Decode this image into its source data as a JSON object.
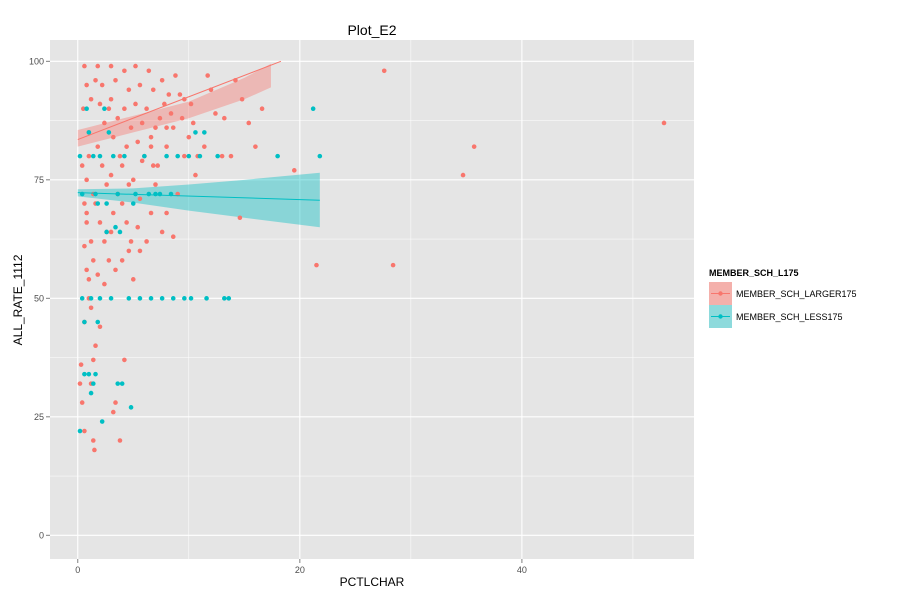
{
  "chart_data": {
    "type": "scatter",
    "title": "Plot_E2",
    "xlabel": "PCTLCHAR",
    "ylabel": "ALL_RATE_1112",
    "xlim": [
      -2.5,
      55.5
    ],
    "ylim": [
      -5,
      104.5
    ],
    "x_ticks": [
      0,
      20,
      40
    ],
    "y_ticks": [
      0,
      25,
      50,
      75,
      100
    ],
    "grid": true,
    "legend": {
      "title": "MEMBER_SCH_L175",
      "position": "right",
      "entries": [
        {
          "label": "MEMBER_SCH_LARGER175",
          "color": "#F8766D",
          "band_color": "#F4B0AB"
        },
        {
          "label": "MEMBER_SCH_LESS175",
          "color": "#00BFC4",
          "band_color": "#8DDADC"
        }
      ]
    },
    "series": [
      {
        "name": "MEMBER_SCH_LARGER175",
        "color": "#F8766D",
        "points": [
          [
            27.6,
            98
          ],
          [
            52.8,
            87
          ],
          [
            35.7,
            82
          ],
          [
            34.7,
            76
          ],
          [
            28.4,
            57
          ],
          [
            21.5,
            57
          ],
          [
            19.5,
            77
          ],
          [
            16.6,
            90
          ],
          [
            16.0,
            82
          ],
          [
            15.4,
            87
          ],
          [
            14.8,
            92
          ],
          [
            14.6,
            67
          ],
          [
            14.2,
            96
          ],
          [
            13.8,
            80
          ],
          [
            13.2,
            88
          ],
          [
            12.0,
            94
          ],
          [
            11.4,
            82
          ],
          [
            10.6,
            76
          ],
          [
            11.7,
            97
          ],
          [
            12.4,
            89
          ],
          [
            13.0,
            80
          ],
          [
            10.0,
            84
          ],
          [
            10.8,
            80
          ],
          [
            9.6,
            80
          ],
          [
            9.0,
            72
          ],
          [
            9.6,
            92
          ],
          [
            8.0,
            86
          ],
          [
            7.6,
            64
          ],
          [
            8.6,
            63
          ],
          [
            8.0,
            68
          ],
          [
            7.0,
            74
          ],
          [
            6.6,
            68
          ],
          [
            6.6,
            84
          ],
          [
            6.0,
            80
          ],
          [
            6.8,
            78
          ],
          [
            6.2,
            62
          ],
          [
            5.4,
            65
          ],
          [
            5.6,
            60
          ],
          [
            5.0,
            54
          ],
          [
            4.6,
            60
          ],
          [
            3.4,
            28
          ],
          [
            3.2,
            26
          ],
          [
            3.8,
            20
          ],
          [
            4.2,
            37
          ],
          [
            2.0,
            44
          ],
          [
            1.6,
            40
          ],
          [
            1.4,
            37
          ],
          [
            1.2,
            32
          ],
          [
            1.4,
            20
          ],
          [
            1.5,
            18
          ],
          [
            0.6,
            22
          ],
          [
            0.4,
            28
          ],
          [
            0.2,
            32
          ],
          [
            0.3,
            36
          ],
          [
            0.6,
            45
          ],
          [
            1.0,
            50
          ],
          [
            1.2,
            48
          ],
          [
            0.8,
            56
          ],
          [
            0.6,
            61
          ],
          [
            0.8,
            66
          ],
          [
            0.6,
            70
          ],
          [
            0.8,
            75
          ],
          [
            0.4,
            78
          ],
          [
            1.0,
            85
          ],
          [
            0.5,
            90
          ],
          [
            0.8,
            95
          ],
          [
            0.6,
            99
          ],
          [
            1.8,
            99
          ],
          [
            2.2,
            95
          ],
          [
            2.0,
            91
          ],
          [
            2.4,
            87
          ],
          [
            1.8,
            82
          ],
          [
            2.2,
            78
          ],
          [
            2.6,
            74
          ],
          [
            1.6,
            70
          ],
          [
            2.0,
            66
          ],
          [
            2.4,
            62
          ],
          [
            2.8,
            58
          ],
          [
            1.8,
            55
          ],
          [
            2.4,
            53
          ],
          [
            3.0,
            99
          ],
          [
            3.4,
            96
          ],
          [
            3.0,
            92
          ],
          [
            3.6,
            88
          ],
          [
            3.2,
            84
          ],
          [
            3.8,
            80
          ],
          [
            3.0,
            76
          ],
          [
            3.6,
            72
          ],
          [
            3.2,
            68
          ],
          [
            3.0,
            64
          ],
          [
            4.2,
            98
          ],
          [
            4.6,
            94
          ],
          [
            4.2,
            90
          ],
          [
            4.8,
            86
          ],
          [
            4.4,
            82
          ],
          [
            4.0,
            78
          ],
          [
            4.6,
            74
          ],
          [
            4.0,
            70
          ],
          [
            4.4,
            66
          ],
          [
            4.8,
            62
          ],
          [
            5.2,
            99
          ],
          [
            5.6,
            95
          ],
          [
            5.2,
            91
          ],
          [
            5.8,
            87
          ],
          [
            5.4,
            83
          ],
          [
            5.8,
            79
          ],
          [
            5.0,
            75
          ],
          [
            5.6,
            71
          ],
          [
            6.4,
            98
          ],
          [
            6.8,
            94
          ],
          [
            6.2,
            90
          ],
          [
            7.0,
            86
          ],
          [
            6.6,
            82
          ],
          [
            7.2,
            78
          ],
          [
            7.6,
            96
          ],
          [
            7.8,
            91
          ],
          [
            7.4,
            88
          ],
          [
            8.2,
            93
          ],
          [
            8.4,
            89
          ],
          [
            8.0,
            82
          ],
          [
            8.8,
            97
          ],
          [
            9.2,
            93
          ],
          [
            8.6,
            86
          ],
          [
            9.4,
            88
          ],
          [
            10.2,
            91
          ],
          [
            10.4,
            87
          ],
          [
            1.2,
            62
          ],
          [
            1.4,
            58
          ],
          [
            1.0,
            54
          ],
          [
            2.6,
            64
          ],
          [
            3.4,
            56
          ],
          [
            4.0,
            58
          ],
          [
            1.6,
            96
          ],
          [
            1.2,
            92
          ],
          [
            2.8,
            90
          ],
          [
            1.0,
            80
          ],
          [
            1.4,
            72
          ],
          [
            0.8,
            68
          ]
        ],
        "trend": {
          "x": [
            0,
            18.3
          ],
          "y": [
            83.5,
            100.0
          ]
        }
      },
      {
        "name": "MEMBER_SCH_LESS175",
        "color": "#00BFC4",
        "points": [
          [
            21.8,
            80
          ],
          [
            21.2,
            90
          ],
          [
            18.0,
            80
          ],
          [
            13.6,
            50
          ],
          [
            13.2,
            50
          ],
          [
            12.6,
            80
          ],
          [
            11.6,
            50
          ],
          [
            11.4,
            85
          ],
          [
            11.0,
            80
          ],
          [
            10.6,
            85
          ],
          [
            10.2,
            50
          ],
          [
            10.0,
            80
          ],
          [
            9.6,
            50
          ],
          [
            9.0,
            80
          ],
          [
            8.6,
            50
          ],
          [
            8.0,
            80
          ],
          [
            7.6,
            50
          ],
          [
            7.0,
            72
          ],
          [
            6.6,
            50
          ],
          [
            6.0,
            80
          ],
          [
            5.6,
            50
          ],
          [
            5.0,
            70
          ],
          [
            4.8,
            27
          ],
          [
            4.0,
            32
          ],
          [
            3.6,
            32
          ],
          [
            3.4,
            65
          ],
          [
            3.0,
            50
          ],
          [
            2.6,
            64
          ],
          [
            2.2,
            24
          ],
          [
            2.0,
            80
          ],
          [
            1.8,
            45
          ],
          [
            1.6,
            34
          ],
          [
            1.4,
            32
          ],
          [
            1.2,
            30
          ],
          [
            1.0,
            34
          ],
          [
            0.6,
            34
          ],
          [
            0.2,
            22
          ],
          [
            0.4,
            50
          ],
          [
            0.8,
            90
          ],
          [
            1.0,
            85
          ],
          [
            1.4,
            80
          ],
          [
            1.6,
            72
          ],
          [
            2.4,
            90
          ],
          [
            2.8,
            85
          ],
          [
            3.2,
            80
          ],
          [
            3.6,
            72
          ],
          [
            4.2,
            80
          ],
          [
            4.6,
            50
          ],
          [
            5.2,
            72
          ],
          [
            6.4,
            72
          ],
          [
            7.4,
            72
          ],
          [
            8.4,
            72
          ],
          [
            1.2,
            50
          ],
          [
            2.0,
            50
          ],
          [
            0.6,
            45
          ],
          [
            1.8,
            70
          ],
          [
            2.6,
            70
          ],
          [
            3.8,
            64
          ],
          [
            0.4,
            72
          ],
          [
            0.2,
            80
          ]
        ],
        "trend": {
          "x": [
            0,
            21.8
          ],
          "y": [
            72.3,
            70.7
          ]
        }
      }
    ],
    "bands": [
      {
        "series": "MEMBER_SCH_LARGER175",
        "upper": [
          [
            0,
            85.5
          ],
          [
            5,
            88.5
          ],
          [
            10,
            91.5
          ],
          [
            15,
            96.5
          ],
          [
            17.4,
            99.5
          ]
        ],
        "lower": [
          [
            0,
            82.0
          ],
          [
            5,
            85.0
          ],
          [
            10,
            88.0
          ],
          [
            15,
            92.0
          ],
          [
            17.4,
            94.5
          ]
        ]
      },
      {
        "series": "MEMBER_SCH_LESS175",
        "upper": [
          [
            0,
            73.0
          ],
          [
            5,
            73.2
          ],
          [
            10,
            74.0
          ],
          [
            15,
            75.0
          ],
          [
            21.8,
            76.5
          ]
        ],
        "lower": [
          [
            0,
            71.5
          ],
          [
            5,
            70.2
          ],
          [
            10,
            68.5
          ],
          [
            15,
            67.0
          ],
          [
            21.8,
            65.0
          ]
        ]
      }
    ]
  }
}
